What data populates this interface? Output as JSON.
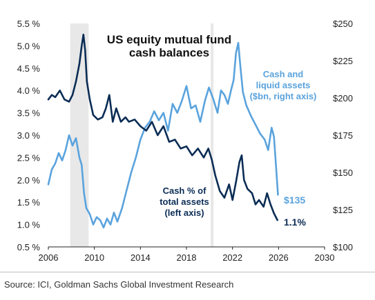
{
  "chart_data": {
    "type": "line",
    "title_line1": "US equity mutual fund",
    "title_line2": "cash balances",
    "x_ticks": [
      "2006",
      "2010",
      "2014",
      "2018",
      "2022",
      "2026",
      "2030"
    ],
    "xlim": [
      2006,
      2030
    ],
    "left_axis": {
      "ylim": [
        0.5,
        5.5
      ],
      "ticks": [
        0.5,
        1.0,
        1.5,
        2.0,
        2.5,
        3.0,
        3.5,
        4.0,
        4.5,
        5.0,
        5.5
      ],
      "tick_labels": [
        "0.5 %",
        "1.0 %",
        "1.5 %",
        "2.0 %",
        "2.5 %",
        "3.0 %",
        "3.5 %",
        "4.0 %",
        "4.5 %",
        "5.0 %",
        "5.5 %"
      ]
    },
    "right_axis": {
      "ylim": [
        100,
        250
      ],
      "ticks": [
        100,
        125,
        150,
        175,
        200,
        225,
        250
      ],
      "tick_labels": [
        "$100",
        "$125",
        "$150",
        "$175",
        "$200",
        "$225",
        "$250"
      ]
    },
    "recession_bands": [
      [
        2007.9,
        2009.5
      ],
      [
        2020.1,
        2020.35
      ]
    ],
    "series": [
      {
        "name_line1": "Cash % of",
        "name_line2": "total assets",
        "name_line3": "(left axis)",
        "axis": "left",
        "color": "#0a2c54",
        "end_label": "1.1%",
        "x": [
          2006.0,
          2006.3,
          2006.6,
          2007.0,
          2007.4,
          2007.8,
          2008.1,
          2008.4,
          2008.7,
          2008.9,
          2009.05,
          2009.2,
          2009.35,
          2009.6,
          2009.9,
          2010.3,
          2010.7,
          2011.0,
          2011.3,
          2011.6,
          2011.9,
          2012.3,
          2012.7,
          2013.0,
          2013.5,
          2014.0,
          2014.5,
          2015.0,
          2015.5,
          2016.0,
          2016.5,
          2017.0,
          2017.5,
          2018.0,
          2018.5,
          2019.0,
          2019.5,
          2019.9,
          2020.2,
          2020.5,
          2020.9,
          2021.3,
          2021.7,
          2022.0,
          2022.3,
          2022.6,
          2022.8,
          2023.0,
          2023.3,
          2023.7,
          2024.0,
          2024.3,
          2024.7,
          2025.0,
          2025.3,
          2025.6,
          2025.9
        ],
        "values": [
          3.8,
          3.9,
          3.85,
          4.0,
          3.8,
          3.75,
          3.9,
          4.2,
          4.6,
          5.0,
          5.25,
          4.9,
          4.2,
          3.8,
          3.45,
          3.35,
          3.4,
          3.6,
          3.9,
          3.3,
          3.6,
          3.3,
          3.4,
          3.3,
          3.35,
          3.2,
          3.1,
          3.3,
          3.0,
          3.2,
          2.85,
          2.9,
          2.7,
          2.75,
          2.55,
          2.7,
          2.5,
          2.7,
          2.45,
          2.1,
          1.75,
          1.6,
          1.9,
          1.55,
          1.95,
          2.4,
          2.55,
          2.0,
          1.8,
          1.7,
          1.45,
          1.55,
          1.4,
          1.7,
          1.45,
          1.25,
          1.1
        ]
      },
      {
        "name_line1": "Cash and",
        "name_line2": "liquid assets",
        "name_line3": "($bn, right axis)",
        "axis": "right",
        "color": "#5aa3dd",
        "end_label": "$135",
        "x": [
          2006.0,
          2006.3,
          2006.6,
          2006.9,
          2007.2,
          2007.5,
          2007.8,
          2008.1,
          2008.4,
          2008.7,
          2008.9,
          2009.1,
          2009.3,
          2009.6,
          2009.9,
          2010.2,
          2010.5,
          2010.8,
          2011.1,
          2011.4,
          2011.7,
          2012.0,
          2012.4,
          2012.8,
          2013.2,
          2013.6,
          2014.0,
          2014.4,
          2014.8,
          2015.2,
          2015.6,
          2016.0,
          2016.4,
          2016.8,
          2017.2,
          2017.6,
          2018.0,
          2018.4,
          2018.8,
          2019.2,
          2019.6,
          2019.95,
          2020.3,
          2020.7,
          2021.0,
          2021.3,
          2021.6,
          2021.9,
          2022.1,
          2022.3,
          2022.5,
          2022.7,
          2022.9,
          2023.2,
          2023.6,
          2024.0,
          2024.4,
          2024.8,
          2025.1,
          2025.4,
          2025.6,
          2025.8,
          2025.95
        ],
        "values": [
          142,
          152,
          156,
          163,
          158,
          165,
          175,
          168,
          173,
          160,
          155,
          136,
          126,
          122,
          115,
          120,
          118,
          113,
          119,
          115,
          123,
          117,
          126,
          138,
          150,
          160,
          172,
          180,
          184,
          191,
          185,
          190,
          178,
          196,
          190,
          198,
          208,
          193,
          195,
          184,
          198,
          207,
          200,
          190,
          205,
          202,
          196,
          206,
          212,
          230,
          237,
          220,
          204,
          195,
          188,
          182,
          176,
          172,
          165,
          180,
          174,
          152,
          135
        ]
      }
    ]
  },
  "source_text": "Source: ICI, Goldman Sachs Global Investment Research"
}
